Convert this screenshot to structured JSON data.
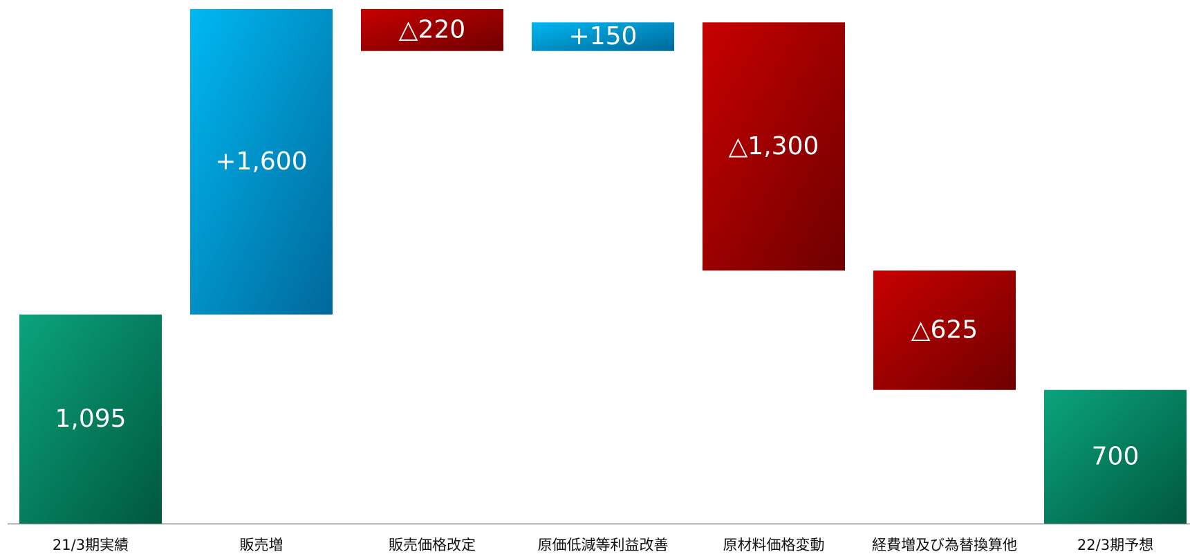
{
  "chart_data": {
    "type": "waterfall",
    "categories": [
      "21/3期実績",
      "販売増",
      "販売価格改定",
      "原価低減等利益改善",
      "原材料価格変動",
      "経費増及び為替換算他",
      "22/3期予想"
    ],
    "values": [
      1095,
      1600,
      -220,
      150,
      -1300,
      -625,
      700
    ],
    "value_labels": [
      "1,095",
      "+1,600",
      "△220",
      "+150",
      "△1,300",
      "△625",
      "700"
    ],
    "colors": {
      "total": [
        "#0aa47c",
        "#00573f"
      ],
      "increase": [
        "#00b8f2",
        "#00689a"
      ],
      "decrease": [
        "#c80000",
        "#6e0000"
      ]
    }
  }
}
